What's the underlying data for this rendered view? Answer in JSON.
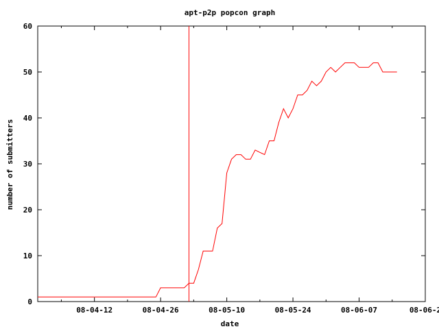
{
  "chart_data": {
    "type": "line",
    "title": "apt-p2p popcon graph",
    "xlabel": "date",
    "ylabel": "number of submitters",
    "x_is_date": true,
    "xlim": [
      "2008-03-31",
      "2008-06-21"
    ],
    "ylim": [
      0,
      60
    ],
    "xticks": [
      {
        "date": "2008-04-12",
        "label": "08-04-12"
      },
      {
        "date": "2008-04-26",
        "label": "08-04-26"
      },
      {
        "date": "2008-05-10",
        "label": "08-05-10"
      },
      {
        "date": "2008-05-24",
        "label": "08-05-24"
      },
      {
        "date": "2008-06-07",
        "label": "08-06-07"
      },
      {
        "date": "2008-06-21",
        "label": "08-06-2"
      }
    ],
    "yticks": [
      0,
      10,
      20,
      30,
      40,
      50,
      60
    ],
    "grid": false,
    "series": [
      {
        "color": "#ff0000",
        "points": [
          [
            "2008-03-31",
            1
          ],
          [
            "2008-04-25",
            1
          ],
          [
            "2008-04-26",
            3
          ],
          [
            "2008-04-30",
            3
          ],
          [
            "2008-05-01",
            3
          ],
          [
            "2008-05-02",
            4
          ],
          [
            "2008-05-03",
            4
          ],
          [
            "2008-05-04",
            7
          ],
          [
            "2008-05-05",
            11
          ],
          [
            "2008-05-06",
            11
          ],
          [
            "2008-05-07",
            11
          ],
          [
            "2008-05-08",
            16
          ],
          [
            "2008-05-09",
            17
          ],
          [
            "2008-05-10",
            28
          ],
          [
            "2008-05-11",
            31
          ],
          [
            "2008-05-12",
            32
          ],
          [
            "2008-05-13",
            32
          ],
          [
            "2008-05-14",
            31
          ],
          [
            "2008-05-15",
            31
          ],
          [
            "2008-05-16",
            33
          ],
          [
            "2008-05-17",
            32.5
          ],
          [
            "2008-05-18",
            32
          ],
          [
            "2008-05-19",
            35
          ],
          [
            "2008-05-20",
            35
          ],
          [
            "2008-05-21",
            39
          ],
          [
            "2008-05-22",
            42
          ],
          [
            "2008-05-23",
            40
          ],
          [
            "2008-05-24",
            42
          ],
          [
            "2008-05-25",
            45
          ],
          [
            "2008-05-26",
            45
          ],
          [
            "2008-05-27",
            46
          ],
          [
            "2008-05-28",
            48
          ],
          [
            "2008-05-29",
            47
          ],
          [
            "2008-05-30",
            48
          ],
          [
            "2008-05-31",
            50
          ],
          [
            "2008-06-01",
            51
          ],
          [
            "2008-06-02",
            50
          ],
          [
            "2008-06-03",
            51
          ],
          [
            "2008-06-04",
            52
          ],
          [
            "2008-06-05",
            52
          ],
          [
            "2008-06-06",
            52
          ],
          [
            "2008-06-07",
            51
          ],
          [
            "2008-06-08",
            51
          ],
          [
            "2008-06-09",
            51
          ],
          [
            "2008-06-10",
            52
          ],
          [
            "2008-06-11",
            52
          ],
          [
            "2008-06-12",
            50
          ],
          [
            "2008-06-13",
            50
          ],
          [
            "2008-06-14",
            50
          ],
          [
            "2008-06-15",
            50
          ]
        ]
      }
    ],
    "vertical_marker": {
      "date": "2008-05-02",
      "color": "#ff0000"
    }
  }
}
